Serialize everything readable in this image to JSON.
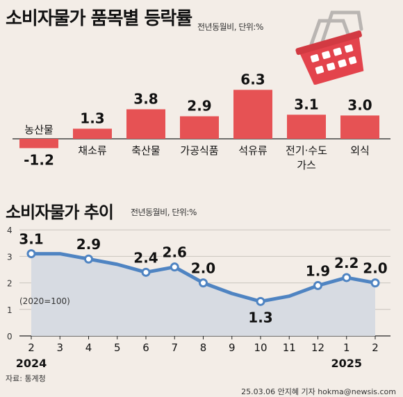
{
  "title": "소비자물가 품목별 등락률",
  "title_unit": "전년동월비, 단위:%",
  "title2": "소비자물가 추이",
  "title2_unit": "전년동월비, 단위:%",
  "source": "자료: 통계청",
  "credit": "25.03.06 안지혜 기자 hokma@newsis.com",
  "colors": {
    "bar": "#e65254",
    "line": "#4f84c2",
    "area": "#d7dbe2",
    "background": "#f3ede7"
  },
  "basket_icon": "shopping-basket-icon",
  "chart_data": [
    {
      "type": "bar",
      "categories": [
        "농산물",
        "채소류",
        "축산물",
        "가공식품",
        "석유류",
        "전기·수도·가스",
        "외식"
      ],
      "values": [
        -1.2,
        1.3,
        3.8,
        2.9,
        6.3,
        3.1,
        3.0
      ],
      "value_labels": [
        "-1.2",
        "1.3",
        "3.8",
        "2.9",
        "6.3",
        "3.1",
        "3.0"
      ]
    },
    {
      "type": "line",
      "x": [
        "2",
        "3",
        "4",
        "5",
        "6",
        "7",
        "8",
        "9",
        "10",
        "11",
        "12",
        "1",
        "2"
      ],
      "years": [
        {
          "label": "2024",
          "at_index": 0
        },
        {
          "label": "2025",
          "at_index": 11
        }
      ],
      "values": [
        3.1,
        3.1,
        2.9,
        2.7,
        2.4,
        2.6,
        2.0,
        1.6,
        1.3,
        1.5,
        1.9,
        2.2,
        2.0
      ],
      "labels": [
        {
          "index": 0,
          "text": "3.1"
        },
        {
          "index": 2,
          "text": "2.9"
        },
        {
          "index": 4,
          "text": "2.4"
        },
        {
          "index": 5,
          "text": "2.6"
        },
        {
          "index": 6,
          "text": "2.0"
        },
        {
          "index": 8,
          "text": "1.3"
        },
        {
          "index": 10,
          "text": "1.9"
        },
        {
          "index": 11,
          "text": "2.2"
        },
        {
          "index": 12,
          "text": "2.0"
        }
      ],
      "markers": [
        0,
        2,
        4,
        5,
        6,
        8,
        10,
        11,
        12
      ],
      "ylim": [
        0,
        4
      ],
      "yticks": [
        "0",
        "1",
        "2",
        "3",
        "4"
      ],
      "annotation": "(2020=100)",
      "grid": true
    }
  ]
}
